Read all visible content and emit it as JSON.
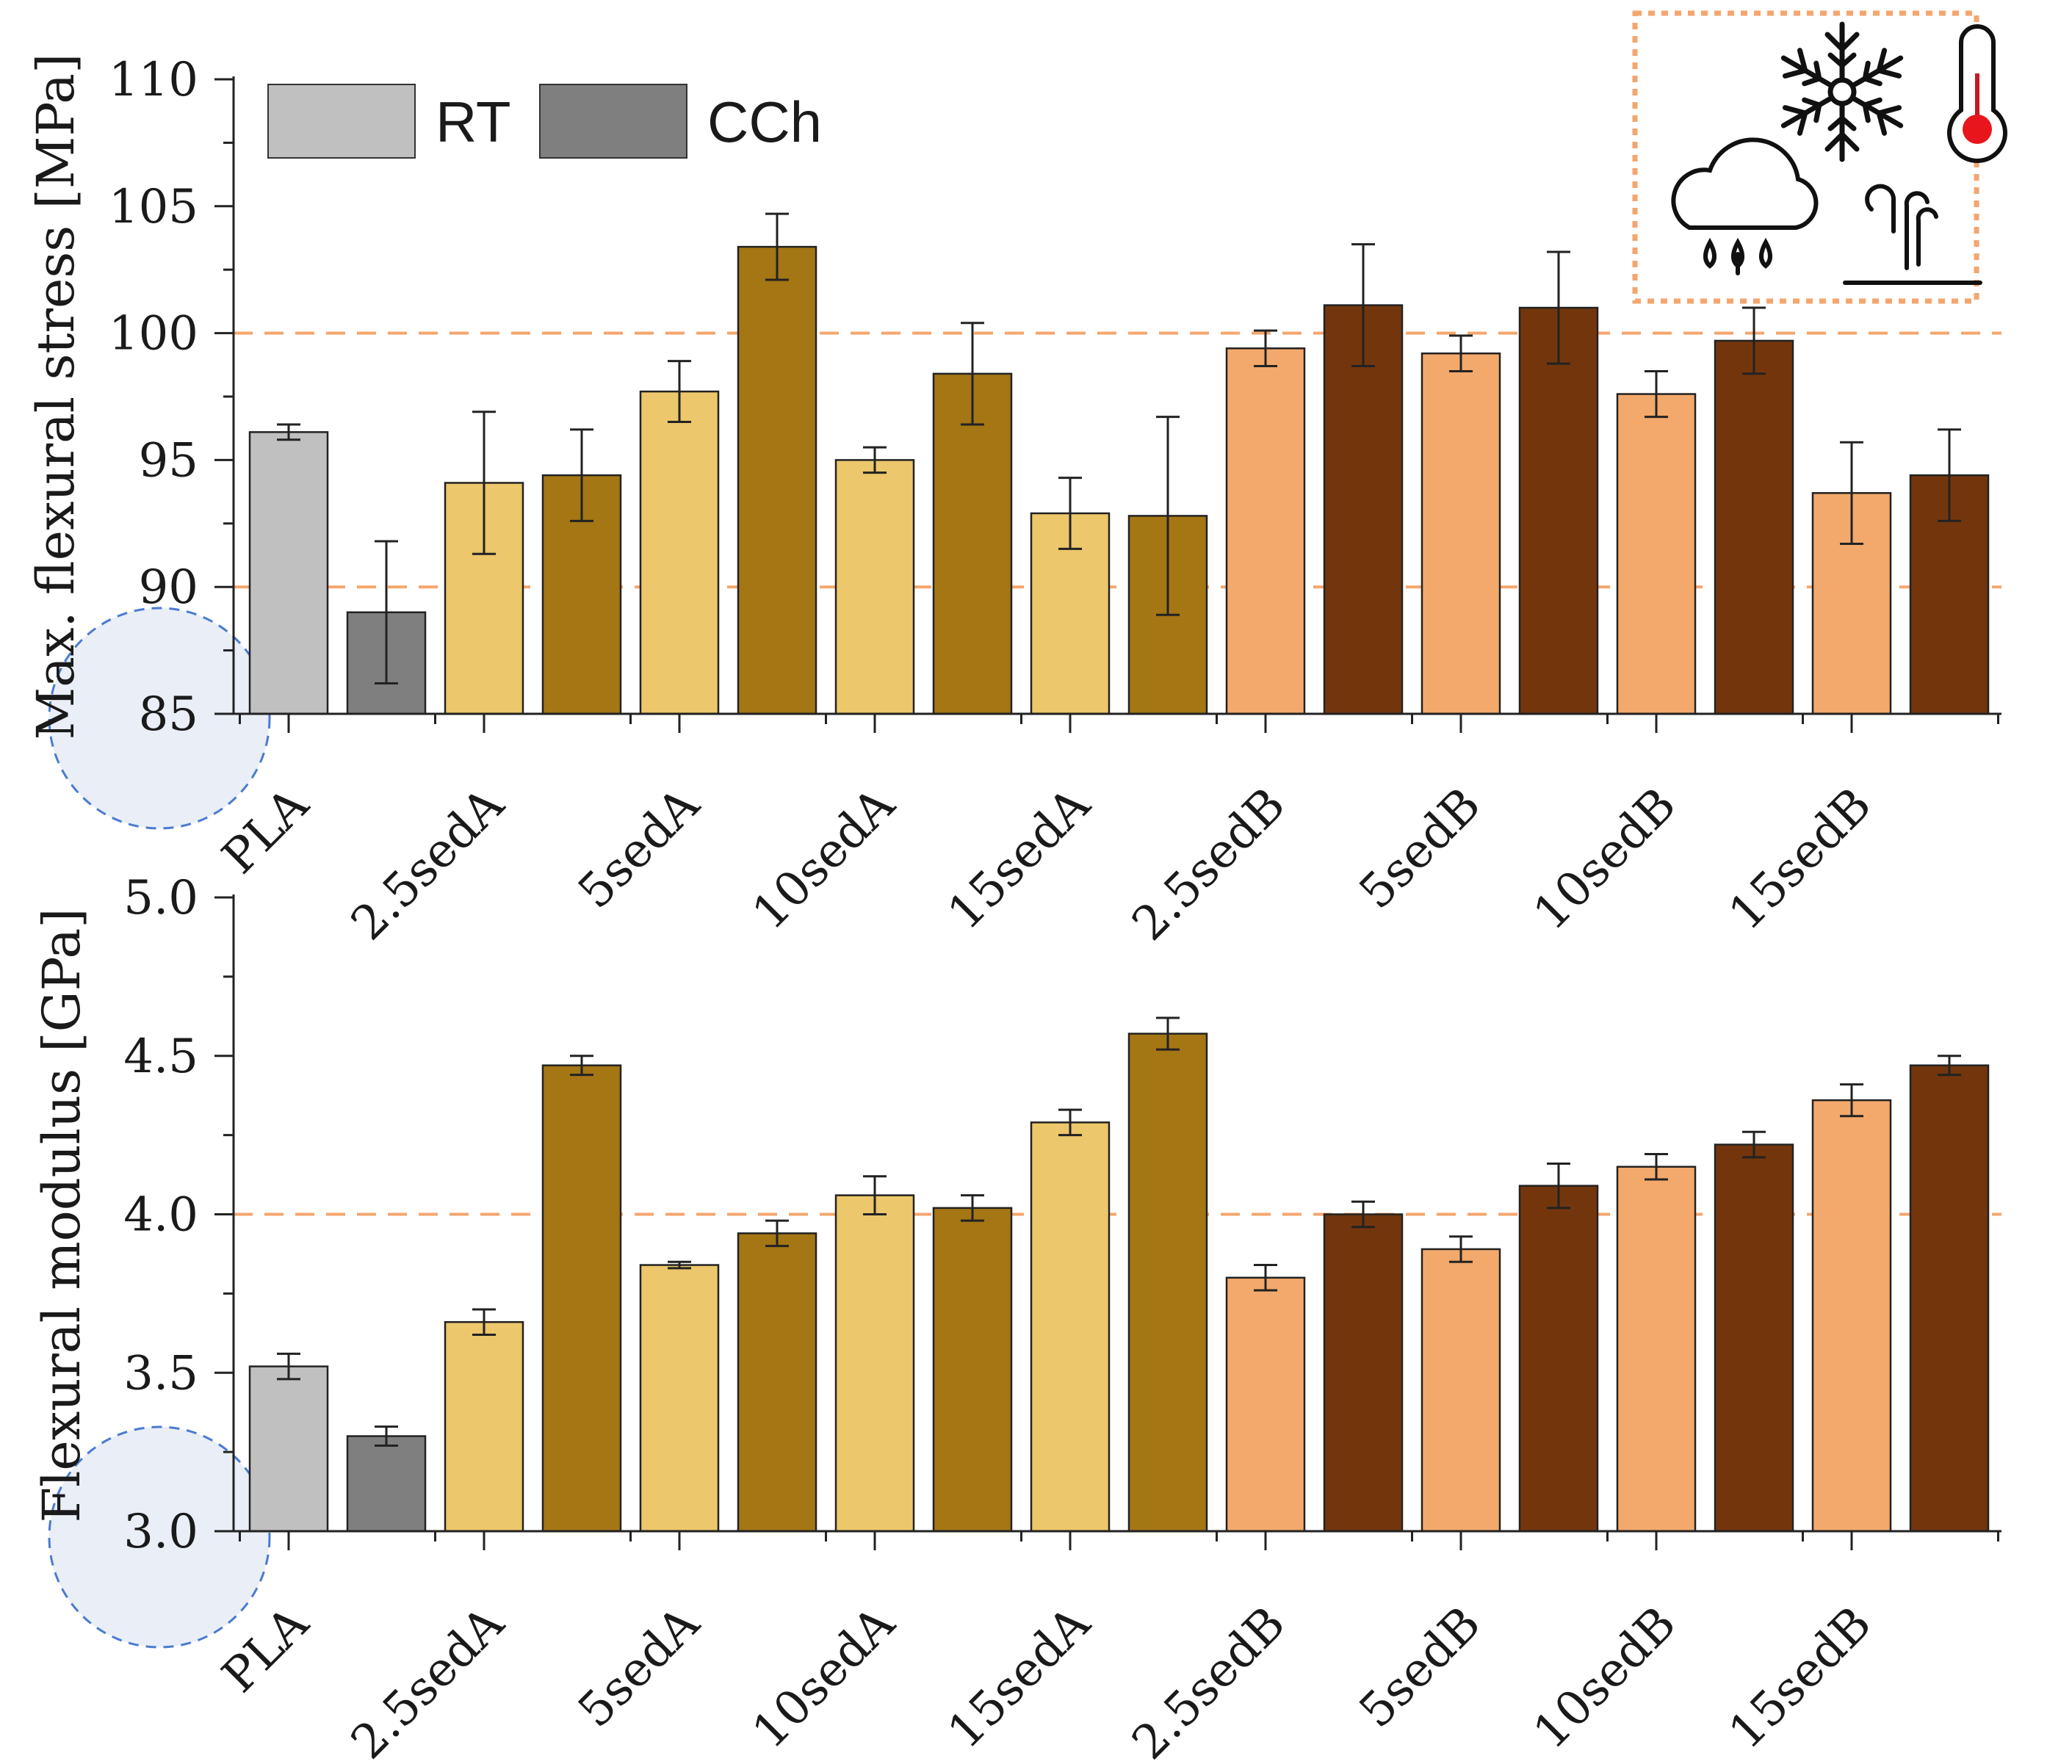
{
  "legend": {
    "items": [
      {
        "label": "RT",
        "color": "#c0c0c0"
      },
      {
        "label": "CCh",
        "color": "#7f7f7f"
      }
    ]
  },
  "conditions_icons": [
    "snowflake-icon",
    "thermometer-icon",
    "rain-cloud-icon",
    "wind-icon"
  ],
  "colors": {
    "PLA_RT": "#c0c0c0",
    "PLA_CCh": "#7f7f7f",
    "sedA_RT": "#ecc76b",
    "sedA_CCh": "#a47614",
    "sedB_RT": "#f3a96b",
    "sedB_CCh": "#73360c",
    "reference_line": "#f4a66e",
    "icon_box_border": "#f4a66e"
  },
  "chart_data": [
    {
      "type": "bar",
      "ylabel": "Max. flexural stress [MPa]",
      "ylim": [
        85,
        110
      ],
      "yticks": [
        85,
        90,
        95,
        100,
        105,
        110
      ],
      "reference_lines": [
        90,
        100
      ],
      "categories": [
        "PLA",
        "2.5sedA",
        "5sedA",
        "10sedA",
        "15sedA",
        "2.5sedB",
        "5sedB",
        "10sedB",
        "15sedB"
      ],
      "series": [
        {
          "name": "RT",
          "values": [
            96.1,
            94.1,
            97.7,
            95.0,
            92.9,
            99.4,
            99.2,
            97.6,
            93.7
          ],
          "errors": [
            0.3,
            2.8,
            1.2,
            0.5,
            1.4,
            0.7,
            0.7,
            0.9,
            2.0
          ]
        },
        {
          "name": "CCh",
          "values": [
            89.0,
            94.4,
            103.4,
            98.4,
            92.8,
            101.1,
            101.0,
            99.7,
            94.4
          ],
          "errors": [
            2.8,
            1.8,
            1.3,
            2.0,
            3.9,
            2.4,
            2.2,
            1.3,
            1.8
          ]
        }
      ]
    },
    {
      "type": "bar",
      "ylabel": "Flexural modulus [GPa]",
      "ylim": [
        3.0,
        5.0
      ],
      "yticks": [
        "3.0",
        "3.5",
        "4.0",
        "4.5",
        "5.0"
      ],
      "reference_lines": [
        4.0
      ],
      "categories": [
        "PLA",
        "2.5sedA",
        "5sedA",
        "10sedA",
        "15sedA",
        "2.5sedB",
        "5sedB",
        "10sedB",
        "15sedB"
      ],
      "series": [
        {
          "name": "RT",
          "values": [
            3.52,
            3.66,
            3.84,
            4.06,
            4.29,
            3.8,
            3.89,
            4.15,
            4.36
          ],
          "errors": [
            0.04,
            0.04,
            0.01,
            0.06,
            0.04,
            0.04,
            0.04,
            0.04,
            0.05
          ]
        },
        {
          "name": "CCh",
          "values": [
            3.3,
            4.47,
            3.94,
            4.02,
            4.57,
            4.0,
            4.09,
            4.22,
            4.47
          ],
          "errors": [
            0.03,
            0.03,
            0.04,
            0.04,
            0.05,
            0.04,
            0.07,
            0.04,
            0.03
          ]
        }
      ]
    }
  ]
}
